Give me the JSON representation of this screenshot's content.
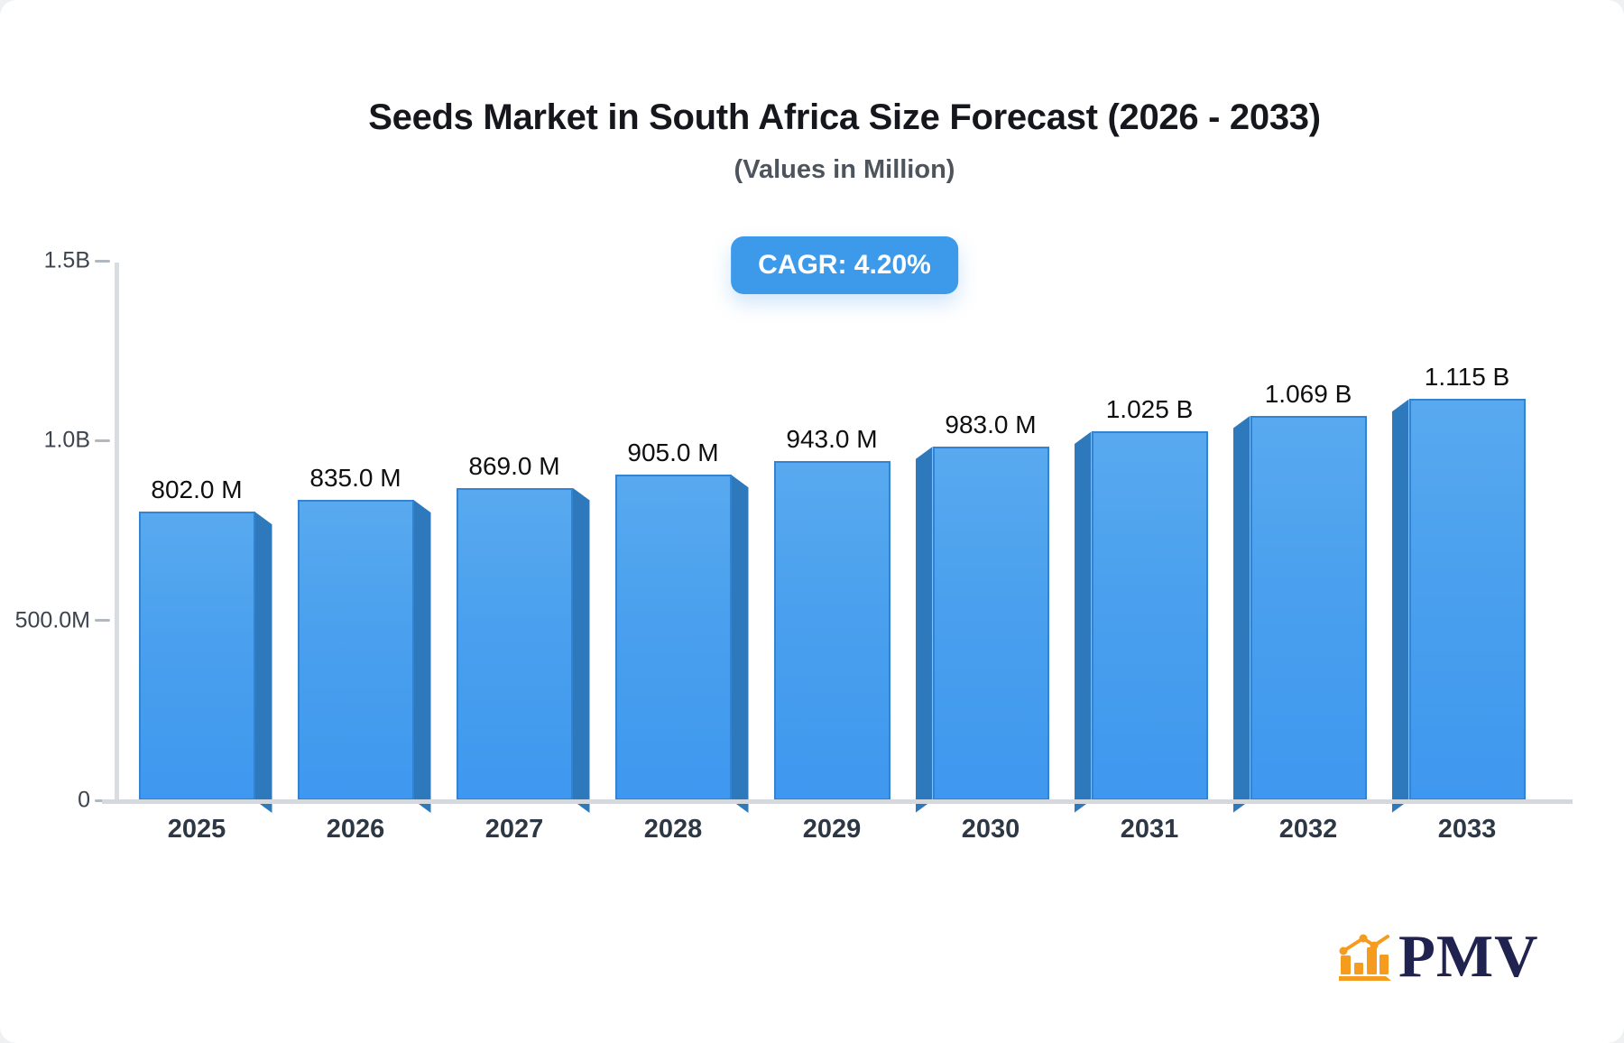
{
  "header": {
    "title": "Seeds Market in South Africa Size Forecast (2026 - 2033)",
    "subtitle": "(Values in Million)"
  },
  "badge": {
    "label": "CAGR: 4.20%"
  },
  "brand": {
    "name": "PMV",
    "icon": "bar-chart-logo-icon"
  },
  "colors": {
    "bar_face_top": "#58a9ef",
    "bar_face_bottom": "#3f98ef",
    "bar_face_border": "#3283d1",
    "bar_side": "#2e78bc",
    "badge_bg": "#3d9aea",
    "axis_line": "#d9dce1",
    "tick_text": "#3d444d",
    "x_label_text": "#2e3744",
    "value_label_text": "#0e0f11",
    "title_text": "#15171c",
    "subtitle_text": "#4e545c",
    "logo_orange": "#f59c1e",
    "logo_navy": "#20224f"
  },
  "chart_data": {
    "type": "bar",
    "title": "Seeds Market in South Africa Size Forecast (2026 - 2033)",
    "subtitle": "(Values in Million)",
    "cagr_label": "CAGR: 4.20%",
    "categories": [
      "2025",
      "2026",
      "2027",
      "2028",
      "2029",
      "2030",
      "2031",
      "2032",
      "2033"
    ],
    "values_million": [
      802,
      835,
      869,
      905,
      943,
      983,
      1025,
      1069,
      1115
    ],
    "bar_labels": [
      "802.0 M",
      "835.0 M",
      "869.0 M",
      "905.0 M",
      "943.0 M",
      "983.0 M",
      "1.025 B",
      "1.069 B",
      "1.115 B"
    ],
    "xlabel": "",
    "ylabel": "",
    "y_axis": {
      "ticks_million": [
        0,
        500,
        1000,
        1500
      ],
      "tick_labels": [
        "0",
        "500.0M",
        "1.0B",
        "1.5B"
      ],
      "range_million": [
        0,
        1500
      ]
    },
    "grid": false,
    "legend": null
  }
}
